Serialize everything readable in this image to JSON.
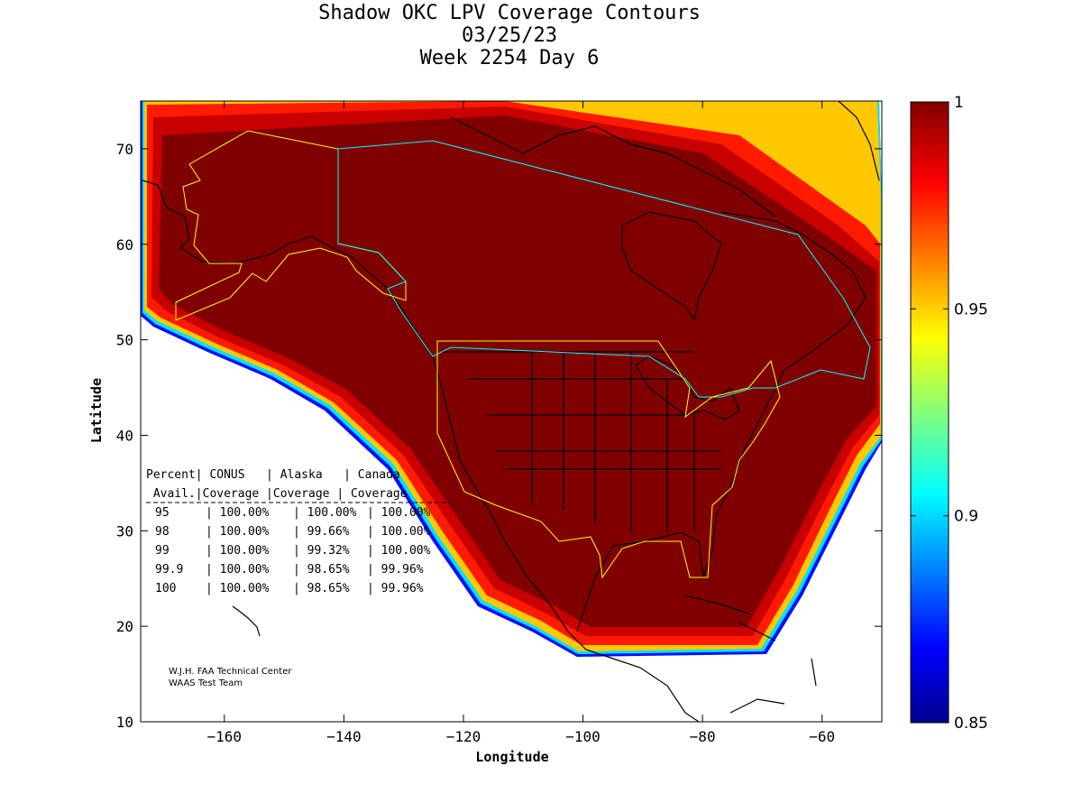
{
  "title": {
    "line1": "Shadow OKC LPV Coverage Contours",
    "line2": "03/25/23",
    "line3": "Week 2254 Day 6"
  },
  "axes": {
    "xlabel": "Longitude",
    "ylabel": "Latitude",
    "xlim": [
      -174,
      -50
    ],
    "ylim": [
      10,
      75
    ],
    "xticks": [
      -160,
      -140,
      -120,
      -100,
      -80,
      -60
    ],
    "yticks": [
      10,
      20,
      30,
      40,
      50,
      60,
      70
    ],
    "xtick_labels": [
      "−160",
      "−140",
      "−120",
      "−100",
      "−80",
      "−60"
    ],
    "ytick_labels": [
      "10",
      "20",
      "30",
      "40",
      "50",
      "60",
      "70"
    ]
  },
  "colorbar": {
    "range": [
      0.85,
      1
    ],
    "ticks": [
      0.85,
      0.9,
      0.95,
      1
    ],
    "tick_labels": [
      "0.85",
      "0.9",
      "0.95",
      "1"
    ],
    "colormap": "jet"
  },
  "table": {
    "headers": {
      "row1": "Percent| CONUS   | Alaska   | Canada",
      "row2": " Avail.|Coverage |Coverage | Coverage"
    },
    "rows": [
      {
        "avail": "95",
        "conus": "100.00%",
        "alaska": "100.00%",
        "canada": "100.00%"
      },
      {
        "avail": "98",
        "conus": "100.00%",
        "alaska": "99.66%",
        "canada": "100.00%"
      },
      {
        "avail": "99",
        "conus": "100.00%",
        "alaska": "99.32%",
        "canada": "100.00%"
      },
      {
        "avail": "99.9",
        "conus": "100.00%",
        "alaska": "98.65%",
        "canada": "99.96%"
      },
      {
        "avail": "100",
        "conus": "100.00%",
        "alaska": "98.65%",
        "canada": "99.96%"
      }
    ]
  },
  "credit": {
    "line1": "W.J.H. FAA Technical Center",
    "line2": "WAAS Test Team"
  },
  "colors": {
    "full_coverage": "#800000",
    "service_volume_conus_alaska": "#ffff00",
    "service_volume_canada": "#00ffff",
    "coastline": "#000000"
  }
}
